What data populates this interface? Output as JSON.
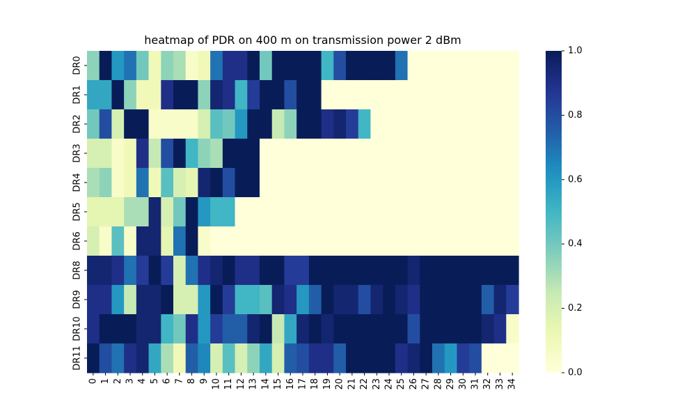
{
  "chart_data": {
    "type": "heatmap",
    "title": "heatmap of PDR on 400 m on transmission power 2 dBm",
    "xlabel": "",
    "ylabel": "",
    "x": [
      "0",
      "1",
      "2",
      "3",
      "4",
      "5",
      "6",
      "7",
      "8",
      "9",
      "10",
      "11",
      "12",
      "13",
      "14",
      "15",
      "16",
      "17",
      "18",
      "19",
      "20",
      "21",
      "22",
      "23",
      "24",
      "25",
      "26",
      "27",
      "28",
      "29",
      "30",
      "31",
      "32",
      "33",
      "34"
    ],
    "y": [
      "DR0",
      "DR1",
      "DR2",
      "DR3",
      "DR4",
      "DR5",
      "DR6",
      "DR8",
      "DR9",
      "DR10",
      "DR11"
    ],
    "colorbar": {
      "min": 0.0,
      "max": 1.0,
      "ticks": [
        "0.0",
        "0.2",
        "0.4",
        "0.6",
        "0.8",
        "1.0"
      ],
      "colormap": "YlGnBu"
    },
    "values": [
      [
        0.35,
        1.0,
        0.6,
        0.7,
        0.4,
        0.1,
        0.35,
        0.3,
        0.05,
        0.1,
        0.7,
        0.9,
        0.9,
        1.0,
        0.4,
        1.0,
        1.0,
        1.0,
        1.0,
        0.5,
        0.8,
        1.0,
        1.0,
        1.0,
        1.0,
        0.7,
        0,
        0,
        0,
        0,
        0,
        0,
        0,
        0,
        0
      ],
      [
        0.55,
        0.55,
        1.0,
        0.35,
        0.1,
        0.1,
        0.9,
        1.0,
        1.0,
        0.35,
        0.95,
        0.9,
        0.5,
        0.85,
        1.0,
        1.0,
        0.8,
        1.0,
        1.0,
        0,
        0,
        0,
        0,
        0,
        0,
        0,
        0,
        0,
        0,
        0,
        0,
        0,
        0,
        0,
        0
      ],
      [
        0.4,
        0.8,
        0.2,
        1.0,
        1.0,
        0.05,
        0.05,
        0.05,
        0.05,
        0.2,
        0.45,
        0.4,
        0.6,
        1.0,
        1.0,
        0.25,
        0.35,
        1.0,
        1.0,
        0.9,
        0.95,
        0.85,
        0.5,
        0,
        0,
        0,
        0,
        0,
        0,
        0,
        0,
        0,
        0,
        0,
        0
      ],
      [
        0.2,
        0.2,
        0.05,
        0.1,
        0.9,
        0.25,
        0.8,
        1.0,
        0.5,
        0.35,
        0.3,
        1.0,
        1.0,
        1.0,
        0,
        0,
        0,
        0,
        0,
        0,
        0,
        0,
        0,
        0,
        0,
        0,
        0,
        0,
        0,
        0,
        0,
        0,
        0,
        0,
        0
      ],
      [
        0.3,
        0.35,
        0.05,
        0.1,
        0.7,
        0.1,
        0.45,
        0.2,
        0.15,
        0.95,
        1.0,
        0.8,
        1.0,
        1.0,
        0,
        0,
        0,
        0,
        0,
        0,
        0,
        0,
        0,
        0,
        0,
        0,
        0,
        0,
        0,
        0,
        0,
        0,
        0,
        0,
        0
      ],
      [
        0.15,
        0.15,
        0.15,
        0.3,
        0.3,
        0.95,
        0.2,
        0.4,
        1.0,
        0.6,
        0.5,
        0.5,
        0,
        0,
        0,
        0,
        0,
        0,
        0,
        0,
        0,
        0,
        0,
        0,
        0,
        0,
        0,
        0,
        0,
        0,
        0,
        0,
        0,
        0,
        0
      ],
      [
        0.2,
        0.05,
        0.45,
        0.05,
        0.95,
        0.95,
        0.15,
        0.7,
        1.0,
        0.05,
        0,
        0,
        0,
        0,
        0,
        0,
        0,
        0,
        0,
        0,
        0,
        0,
        0,
        0,
        0,
        0,
        0,
        0,
        0,
        0,
        0,
        0,
        0,
        0,
        0
      ],
      [
        0.95,
        0.95,
        0.9,
        0.7,
        0.85,
        1.0,
        0.85,
        0.2,
        0.7,
        0.9,
        0.95,
        1.0,
        0.9,
        0.9,
        1.0,
        1.0,
        0.85,
        0.85,
        1.0,
        1.0,
        1.0,
        1.0,
        1.0,
        1.0,
        1.0,
        1.0,
        0.95,
        1.0,
        1.0,
        1.0,
        1.0,
        1.0,
        1.0,
        1.0,
        1.0
      ],
      [
        0.9,
        0.9,
        0.6,
        0.25,
        0.95,
        0.95,
        1.0,
        0.2,
        0.2,
        0.6,
        1.0,
        0.85,
        0.5,
        0.5,
        0.45,
        0.95,
        0.9,
        0.6,
        0.75,
        1.0,
        0.95,
        0.95,
        0.8,
        0.95,
        1.0,
        0.95,
        0.9,
        1.0,
        1.0,
        1.0,
        1.0,
        1.0,
        0.75,
        0.95,
        0.85
      ],
      [
        0.9,
        1.0,
        1.0,
        1.0,
        0.95,
        0.95,
        0.5,
        0.4,
        0.9,
        0.6,
        0.85,
        0.75,
        0.75,
        0.95,
        1.0,
        0.25,
        0.55,
        0.95,
        1.0,
        0.95,
        1.0,
        1.0,
        1.0,
        1.0,
        1.0,
        1.0,
        0.8,
        1.0,
        1.0,
        1.0,
        1.0,
        1.0,
        0.95,
        0.9,
        0.05
      ],
      [
        1.0,
        0.8,
        0.7,
        0.9,
        0.95,
        0.55,
        0.3,
        0.1,
        0.75,
        0.65,
        0.2,
        0.45,
        0.2,
        0.35,
        0.55,
        0.2,
        0.75,
        0.8,
        0.9,
        0.9,
        0.75,
        1.0,
        1.0,
        1.0,
        1.0,
        0.9,
        0.95,
        1.0,
        0.7,
        0.6,
        0.85,
        0.8,
        0,
        0,
        0
      ]
    ]
  }
}
